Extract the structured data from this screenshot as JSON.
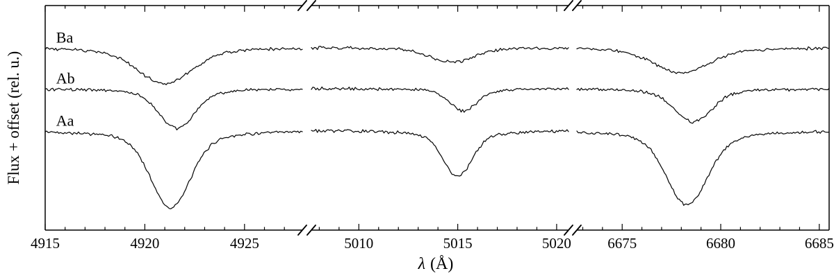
{
  "figure": {
    "background": "#ffffff",
    "line_color": "#000000"
  },
  "chart_data": {
    "type": "line",
    "title": "",
    "xlabel_lambda": "λ",
    "xlabel_units": "(Å)",
    "ylabel": "Flux + offset (rel. u.)",
    "ylim": [
      0,
      2.3
    ],
    "grid": false,
    "legend": "none",
    "noise_amplitude": 0.012,
    "series": [
      {
        "name": "Aa",
        "label": "Aa",
        "continuum": 1.02
      },
      {
        "name": "Ab",
        "label": "Ab",
        "continuum": 1.45
      },
      {
        "name": "Ba",
        "label": "Ba",
        "continuum": 1.87
      }
    ],
    "panels": [
      {
        "xmin": 4915.0,
        "xmax": 4927.9,
        "major_ticks": [
          4915,
          4920,
          4925
        ],
        "minor_step": 1,
        "features": {
          "Aa": {
            "center": 4921.3,
            "depth": 0.79,
            "sigma": 0.95
          },
          "Ab": {
            "center": 4921.6,
            "depth": 0.41,
            "sigma": 0.85
          },
          "Ba": {
            "center": 4921.0,
            "depth": 0.37,
            "sigma": 1.3
          }
        }
      },
      {
        "xmin": 5007.6,
        "xmax": 5020.6,
        "major_ticks": [
          5010,
          5015,
          5020
        ],
        "minor_step": 1,
        "features": {
          "Aa": {
            "center": 5015.0,
            "depth": 0.47,
            "sigma": 0.7
          },
          "Ab": {
            "center": 5015.3,
            "depth": 0.23,
            "sigma": 0.65
          },
          "Ba": {
            "center": 5014.7,
            "depth": 0.15,
            "sigma": 1.05
          }
        }
      },
      {
        "xmin": 6672.7,
        "xmax": 6685.5,
        "major_ticks": [
          6675,
          6680,
          6685
        ],
        "minor_step": 1,
        "features": {
          "Aa": {
            "center": 6678.3,
            "depth": 0.76,
            "sigma": 1.0
          },
          "Ab": {
            "center": 6678.6,
            "depth": 0.34,
            "sigma": 0.9
          },
          "Ba": {
            "center": 6678.0,
            "depth": 0.26,
            "sigma": 1.35
          }
        }
      }
    ],
    "series_labels": [
      {
        "text": "Ba",
        "series": "Ba",
        "panel": 0,
        "x": 4915.55
      },
      {
        "text": "Ab",
        "series": "Ab",
        "panel": 0,
        "x": 4915.55
      },
      {
        "text": "Aa",
        "series": "Aa",
        "panel": 0,
        "x": 4915.55
      }
    ]
  }
}
